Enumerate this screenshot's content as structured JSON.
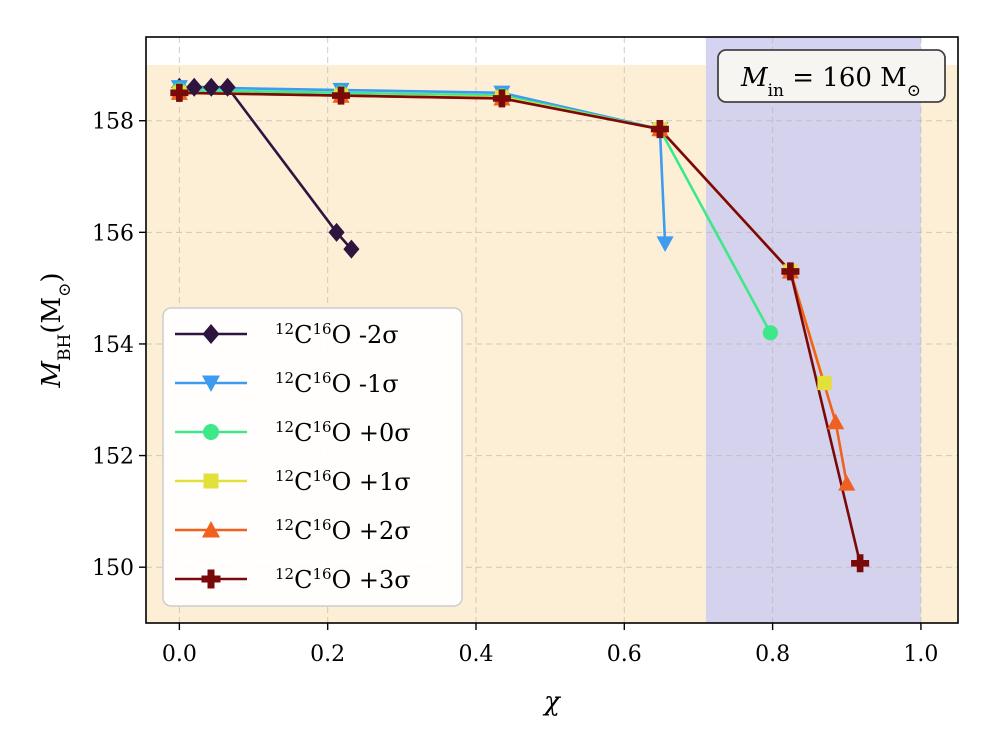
{
  "chart_data": {
    "type": "line",
    "title": "",
    "xlabel": "χ",
    "ylabel_main": "M",
    "ylabel_sub": "BH",
    "ylabel_unit": "(M",
    "ylabel_unit_sub": "⊙",
    "ylabel_close": ")",
    "xlim": [
      -0.045,
      1.05
    ],
    "ylim": [
      149.0,
      159.5
    ],
    "x_ticks": [
      0.0,
      0.2,
      0.4,
      0.6,
      0.8,
      1.0
    ],
    "x_tick_labels": [
      "0.0",
      "0.2",
      "0.4",
      "0.6",
      "0.8",
      "1.0"
    ],
    "y_ticks": [
      150,
      152,
      154,
      156,
      158
    ],
    "y_tick_labels": [
      "150",
      "152",
      "154",
      "156",
      "158"
    ],
    "grid": true,
    "legend_position": "lower-left",
    "annotation": {
      "main": "M",
      "sub": "in",
      "rest": " = 160 M",
      "unit_sub": "⊙",
      "position": "top-right"
    },
    "shaded_regions": [
      {
        "orientation": "horizontal",
        "y_min": 149.0,
        "y_max": 159.0,
        "color": "#fdefd6"
      },
      {
        "orientation": "vertical",
        "x_min": 0.71,
        "x_max": 1.0,
        "color": "#cdcdf0"
      }
    ],
    "series": [
      {
        "name_sup1": "12",
        "name_base1": "C",
        "name_sup2": "16",
        "name_base2": "O",
        "name_tail": " -2σ",
        "color": "#2d1540",
        "marker": "diamond",
        "x": [
          0.0,
          0.02,
          0.043,
          0.065,
          0.212,
          0.232
        ],
        "y": [
          158.6,
          158.6,
          158.6,
          158.6,
          156.0,
          155.7
        ]
      },
      {
        "name_sup1": "12",
        "name_base1": "C",
        "name_sup2": "16",
        "name_base2": "O",
        "name_tail": " -1σ",
        "color": "#3d9cf0",
        "marker": "triangle-down",
        "x": [
          0.0,
          0.218,
          0.435,
          0.648,
          0.655
        ],
        "y": [
          158.6,
          158.55,
          158.5,
          157.85,
          155.8
        ]
      },
      {
        "name_sup1": "12",
        "name_base1": "C",
        "name_sup2": "16",
        "name_base2": "O",
        "name_tail": " +0σ",
        "color": "#3ee88a",
        "marker": "circle",
        "x": [
          0.0,
          0.218,
          0.435,
          0.648,
          0.797
        ],
        "y": [
          158.55,
          158.5,
          158.45,
          157.85,
          154.2
        ]
      },
      {
        "name_sup1": "12",
        "name_base1": "C",
        "name_sup2": "16",
        "name_base2": "O",
        "name_tail": " +1σ",
        "color": "#e2e03a",
        "marker": "square",
        "x": [
          0.0,
          0.218,
          0.435,
          0.648,
          0.824,
          0.87
        ],
        "y": [
          158.5,
          158.45,
          158.42,
          157.85,
          155.3,
          153.3
        ]
      },
      {
        "name_sup1": "12",
        "name_base1": "C",
        "name_sup2": "16",
        "name_base2": "O",
        "name_tail": " +2σ",
        "color": "#f06020",
        "marker": "triangle-up",
        "x": [
          0.0,
          0.218,
          0.435,
          0.648,
          0.824,
          0.885,
          0.9
        ],
        "y": [
          158.5,
          158.45,
          158.4,
          157.85,
          155.3,
          152.6,
          151.5
        ]
      },
      {
        "name_sup1": "12",
        "name_base1": "C",
        "name_sup2": "16",
        "name_base2": "O",
        "name_tail": " +3σ",
        "color": "#7a0a0a",
        "marker": "plus",
        "x": [
          0.0,
          0.218,
          0.435,
          0.648,
          0.824,
          0.918
        ],
        "y": [
          158.5,
          158.45,
          158.4,
          157.85,
          155.3,
          150.07
        ]
      }
    ]
  }
}
